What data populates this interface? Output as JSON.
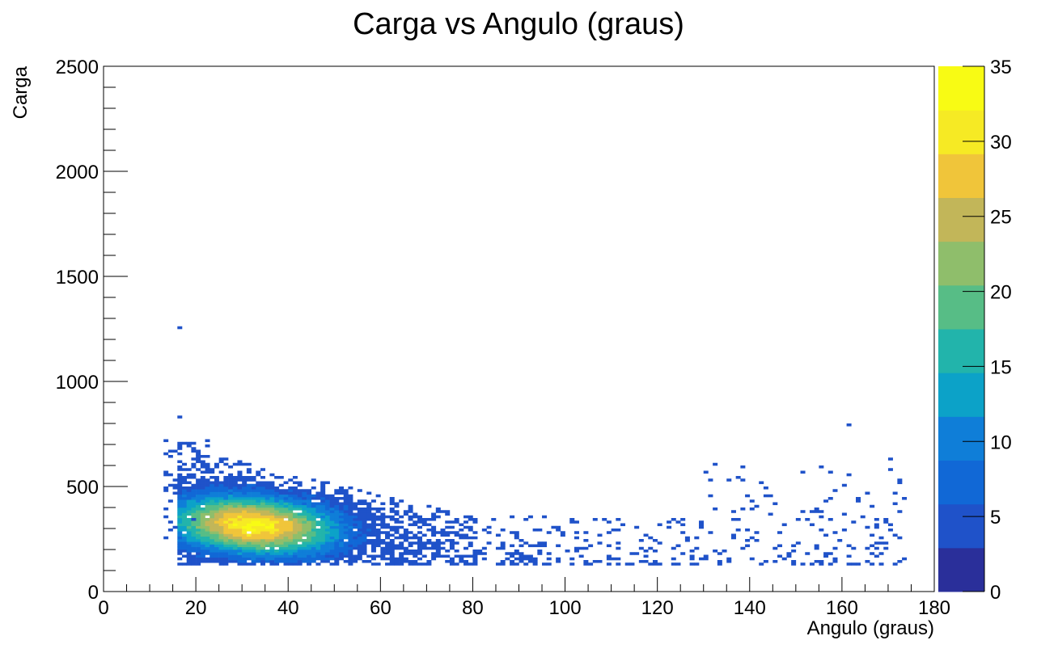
{
  "chart_data": {
    "type": "heatmap",
    "title": "Carga vs Angulo (graus)",
    "xlabel": "Angulo (graus)",
    "ylabel": "Carga",
    "xlim": [
      0,
      180
    ],
    "ylim": [
      0,
      2500
    ],
    "zlim": [
      0,
      35
    ],
    "x_ticks": [
      "0",
      "20",
      "40",
      "60",
      "80",
      "100",
      "120",
      "140",
      "160",
      "180"
    ],
    "y_ticks": [
      "0",
      "500",
      "1000",
      "1500",
      "2000",
      "2500"
    ],
    "z_ticks": [
      "0",
      "5",
      "10",
      "15",
      "20",
      "25",
      "30",
      "35"
    ],
    "bin_width_x": 1,
    "bin_width_y": 12.5,
    "colorscale": [
      "#2a2f9a",
      "#1f52c9",
      "#1168d6",
      "#0f7ed8",
      "#0ca2c8",
      "#22b4ab",
      "#57bd86",
      "#8fbe6b",
      "#c2b659",
      "#f0c53a",
      "#f6ea24",
      "#f8fb14"
    ],
    "description_points": [
      {
        "x": 32,
        "y": 305,
        "z": 30
      },
      {
        "x": 35,
        "y": 290,
        "z": 26
      },
      {
        "x": 28,
        "y": 320,
        "z": 22
      },
      {
        "x": 40,
        "y": 280,
        "z": 20
      },
      {
        "x": 45,
        "y": 265,
        "z": 14
      },
      {
        "x": 25,
        "y": 360,
        "z": 12
      },
      {
        "x": 55,
        "y": 240,
        "z": 8
      },
      {
        "x": 65,
        "y": 210,
        "z": 5
      },
      {
        "x": 90,
        "y": 150,
        "z": 4
      },
      {
        "x": 16,
        "y": 1255,
        "z": 1
      },
      {
        "x": 16,
        "y": 835,
        "z": 2
      },
      {
        "x": 161,
        "y": 795,
        "z": 1
      },
      {
        "x": 170,
        "y": 630,
        "z": 1
      },
      {
        "x": 150,
        "y": 230,
        "z": 2
      }
    ]
  }
}
